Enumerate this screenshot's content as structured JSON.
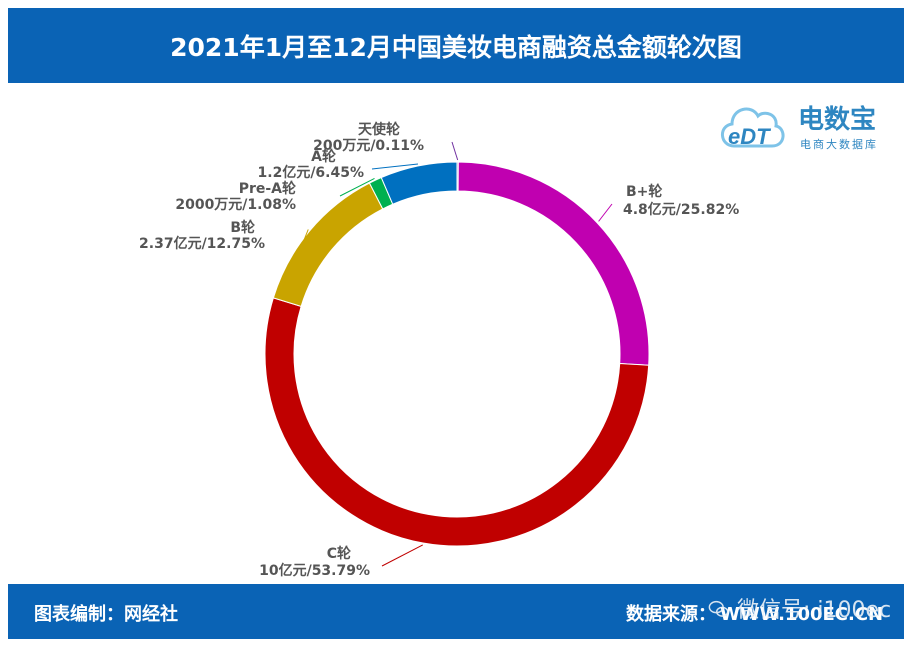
{
  "title": "2021年1月至12月中国美妆电商融资总金额轮次图",
  "footer": {
    "editor_label": "图表编制：网经社",
    "source_label": "数据来源：",
    "source_value": "WWW.100EC.CN"
  },
  "watermark": "微信号: i100ec",
  "logo": {
    "brand": "电数宝",
    "sub": "电商大数据库",
    "mark": "eDT"
  },
  "colors": {
    "header": "#0a63b5",
    "天使轮": "#7030a0",
    "A轮": "#0070c0",
    "Pre-A轮": "#00b050",
    "B轮": "#c9a400",
    "C轮": "#c00000",
    "B+轮": "#c000b0"
  },
  "chart_data": {
    "type": "pie",
    "donut": true,
    "title": "2021年1月至12月中国美妆电商融资总金额轮次图",
    "slices": [
      {
        "name": "天使轮",
        "amount": "200万元",
        "percent": 0.11,
        "label": "200万元/0.11%"
      },
      {
        "name": "B+轮",
        "amount": "4.8亿元",
        "percent": 25.82,
        "label": "4.8亿元/25.82%"
      },
      {
        "name": "C轮",
        "amount": "10亿元",
        "percent": 53.79,
        "label": "10亿元/53.79%"
      },
      {
        "name": "B轮",
        "amount": "2.37亿元",
        "percent": 12.75,
        "label": "2.37亿元/12.75%"
      },
      {
        "name": "Pre-A轮",
        "amount": "2000万元",
        "percent": 1.08,
        "label": "2000万元/1.08%"
      },
      {
        "name": "A轮",
        "amount": "1.2亿元",
        "percent": 6.45,
        "label": "1.2亿元/6.45%"
      }
    ]
  }
}
